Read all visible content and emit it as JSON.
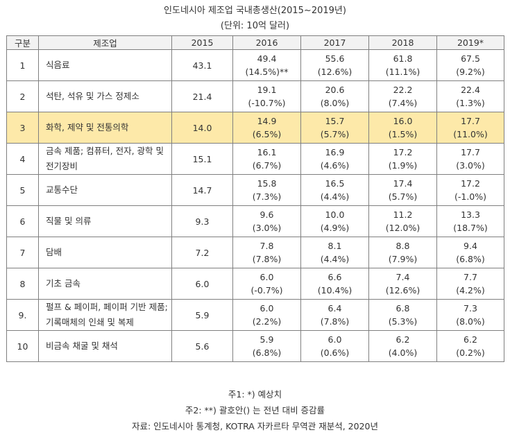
{
  "title": "인도네시아 제조업 국내총생산(2015~2019년)",
  "unit": "(단위: 10억 달러)",
  "headers": [
    "구분",
    "제조업",
    "2015",
    "2016",
    "2017",
    "2018",
    "2019*"
  ],
  "highlight_color": "#fde9a9",
  "rows": [
    {
      "no": "1",
      "name": "식음료",
      "v2015": "43.1",
      "cells": [
        {
          "v": "49.4",
          "p": "(14.5%)**"
        },
        {
          "v": "55.6",
          "p": "(12.6%)"
        },
        {
          "v": "61.8",
          "p": "(11.1%)"
        },
        {
          "v": "67.5",
          "p": "(9.2%)"
        }
      ]
    },
    {
      "no": "2",
      "name": "석탄, 석유 및 가스 정제소",
      "v2015": "21.4",
      "cells": [
        {
          "v": "19.1",
          "p": "(-10.7%)"
        },
        {
          "v": "20.6",
          "p": "(8.0%)"
        },
        {
          "v": "22.2",
          "p": "(7.4%)"
        },
        {
          "v": "22.4",
          "p": "(1.3%)"
        }
      ]
    },
    {
      "no": "3",
      "name": "화학, 제약 및 전통의학",
      "v2015": "14.0",
      "cells": [
        {
          "v": "14.9",
          "p": "(6.5%)"
        },
        {
          "v": "15.7",
          "p": "(5.7%)"
        },
        {
          "v": "16.0",
          "p": "(1.5%)"
        },
        {
          "v": "17.7",
          "p": "(11.0%)"
        }
      ]
    },
    {
      "no": "4",
      "name": "금속 제품; 컴퓨터, 전자, 광학 및 전기장비",
      "v2015": "15.1",
      "cells": [
        {
          "v": "16.1",
          "p": "(6.7%)"
        },
        {
          "v": "16.9",
          "p": "(4.6%)"
        },
        {
          "v": "17.2",
          "p": "(1.9%)"
        },
        {
          "v": "17.7",
          "p": "(3.0%)"
        }
      ]
    },
    {
      "no": "5",
      "name": "교통수단",
      "v2015": "14.7",
      "cells": [
        {
          "v": "15.8",
          "p": "(7.3%)"
        },
        {
          "v": "16.5",
          "p": "(4.4%)"
        },
        {
          "v": "17.4",
          "p": "(5.7%)"
        },
        {
          "v": "17.2",
          "p": "(-1.0%)"
        }
      ]
    },
    {
      "no": "6",
      "name": "직물 및 의류",
      "v2015": "9.3",
      "cells": [
        {
          "v": "9.6",
          "p": "(3.0%)"
        },
        {
          "v": "10.0",
          "p": "(4.9%)"
        },
        {
          "v": "11.2",
          "p": "(12.0%)"
        },
        {
          "v": "13.3",
          "p": "(18.7%)"
        }
      ]
    },
    {
      "no": "7",
      "name": "담배",
      "v2015": "7.2",
      "cells": [
        {
          "v": "7.8",
          "p": "(7.8%)"
        },
        {
          "v": "8.1",
          "p": "(4.4%)"
        },
        {
          "v": "8.8",
          "p": "(7.9%)"
        },
        {
          "v": "9.4",
          "p": "(6.8%)"
        }
      ]
    },
    {
      "no": "8",
      "name": "기초 금속",
      "v2015": "6.0",
      "cells": [
        {
          "v": "6.0",
          "p": "(-0.7%)"
        },
        {
          "v": "6.6",
          "p": "(10.4%)"
        },
        {
          "v": "7.4",
          "p": "(12.6%)"
        },
        {
          "v": "7.7",
          "p": "(4.2%)"
        }
      ]
    },
    {
      "no": "9.",
      "name": "펄프 & 페이퍼, 페이퍼 기반 제품; 기록매체의 인쇄 및 복제",
      "v2015": "5.9",
      "cells": [
        {
          "v": "6.0",
          "p": "(2.2%)"
        },
        {
          "v": "6.4",
          "p": "(7.8%)"
        },
        {
          "v": "6.8",
          "p": "(5.3%)"
        },
        {
          "v": "7.3",
          "p": "(8.0%)"
        }
      ]
    },
    {
      "no": "10",
      "name": "비금속 채굴 및 채석",
      "v2015": "5.6",
      "cells": [
        {
          "v": "5.9",
          "p": "(6.8%)"
        },
        {
          "v": "6.0",
          "p": "(0.6%)"
        },
        {
          "v": "6.2",
          "p": "(4.0%)"
        },
        {
          "v": "6.2",
          "p": "(0.2%)"
        }
      ]
    }
  ],
  "notes": [
    "주1: *) 예상치",
    "주2: **) 괄호안() 는 전년 대비 증감률",
    "자료: 인도네시아 통계청, KOTRA 자카르타 무역관 재분석, 2020년"
  ]
}
